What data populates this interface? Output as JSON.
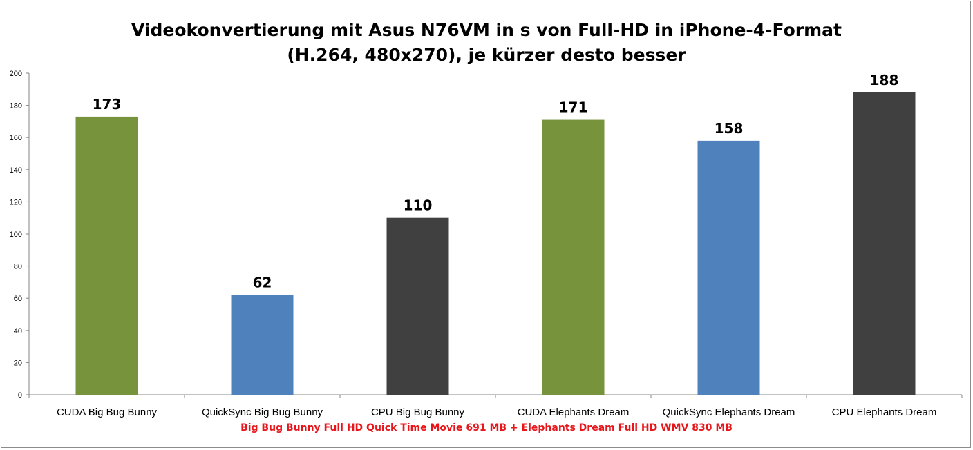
{
  "chart_data": {
    "type": "bar",
    "title_lines": [
      "Videokonvertierung mit Asus N76VM in s von Full-HD in iPhone-4-Format",
      "(H.264, 480x270), je kürzer desto besser"
    ],
    "categories": [
      "CUDA Big Bug Bunny",
      "QuickSync Big Bug Bunny",
      "CPU Big Bug Bunny",
      "CUDA Elephants Dream",
      "QuickSync Elephants Dream",
      "CPU Elephants Dream"
    ],
    "values": [
      173,
      62,
      110,
      171,
      158,
      188
    ],
    "bar_colors": [
      "#77933c",
      "#4f81bd",
      "#404040",
      "#77933c",
      "#4f81bd",
      "#404040"
    ],
    "ylim": [
      0,
      200
    ],
    "yticks": [
      0,
      20,
      40,
      60,
      80,
      100,
      120,
      140,
      160,
      180,
      200
    ],
    "grid": false,
    "legend": "none",
    "xlabel": "Big Bug Bunny Full HD Quick Time Movie 691 MB + Elephants Dream Full HD WMV 830 MB",
    "ylabel": ""
  }
}
